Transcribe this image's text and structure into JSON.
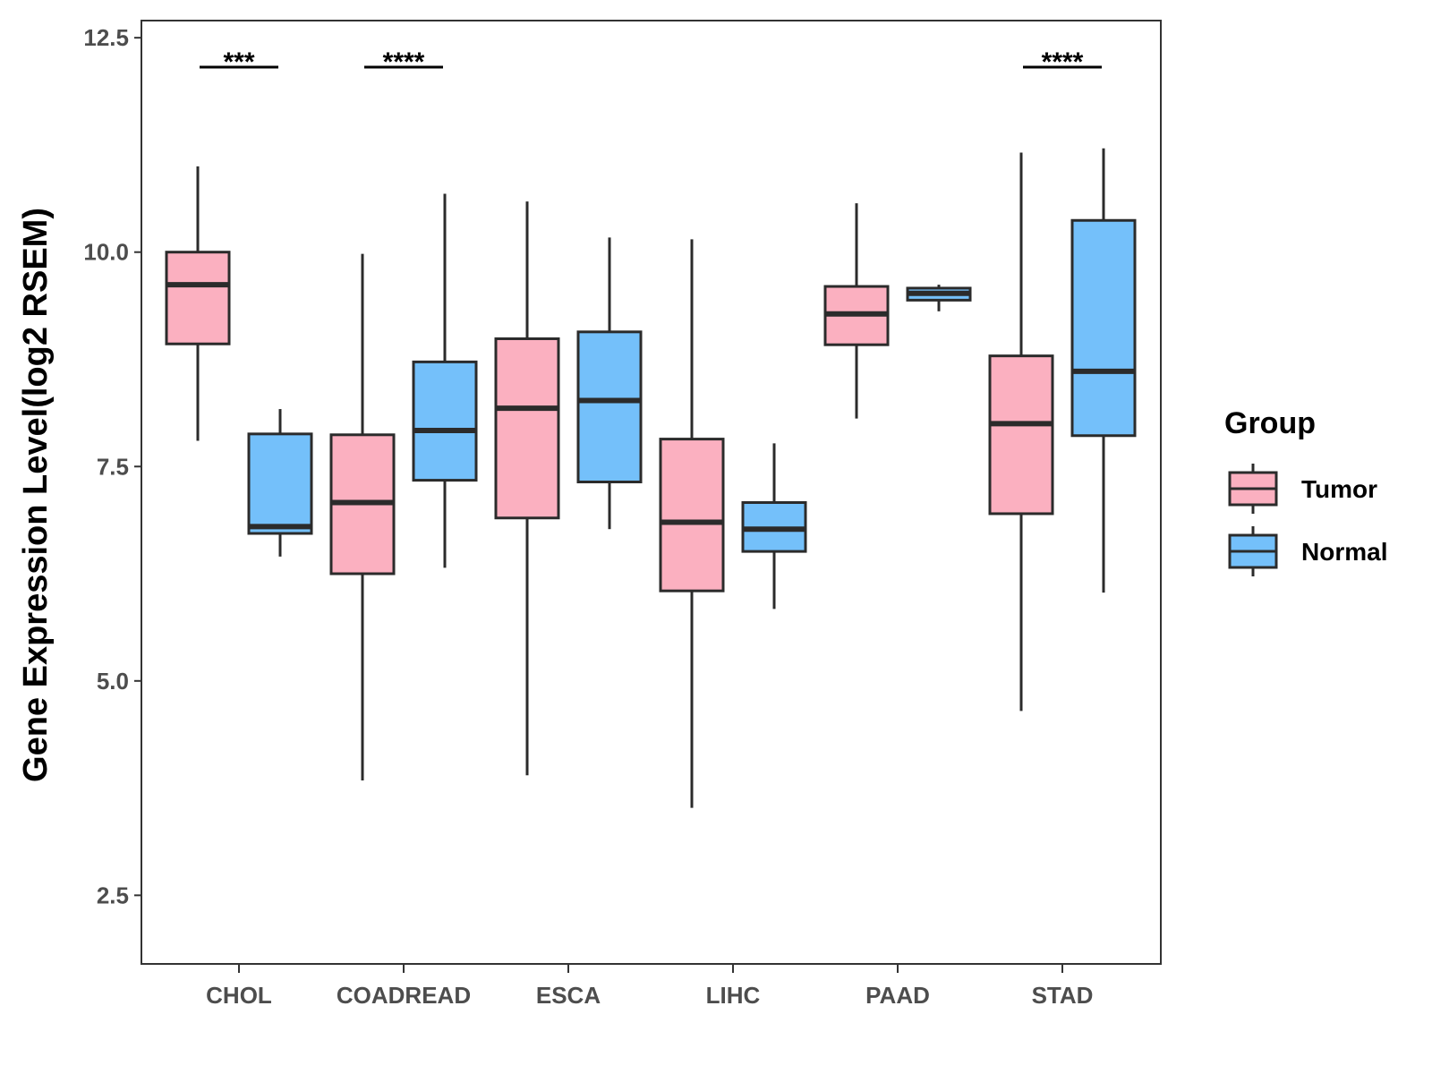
{
  "chart_data": {
    "type": "boxplot",
    "ylabel": "Gene Expression Level(log2 RSEM)",
    "xlabel": "",
    "ylim": [
      1.7,
      12.7
    ],
    "yticks": [
      2.5,
      5.0,
      7.5,
      10.0,
      12.5
    ],
    "ytick_labels": [
      "2.5",
      "5.0",
      "7.5",
      "10.0",
      "12.5"
    ],
    "categories": [
      "CHOL",
      "COADREAD",
      "ESCA",
      "LIHC",
      "PAAD",
      "STAD"
    ],
    "legend": {
      "title": "Group",
      "position": "right",
      "entries": [
        {
          "name": "Tumor",
          "color": "#FBB0C0"
        },
        {
          "name": "Normal",
          "color": "#74C0FA"
        }
      ]
    },
    "series": [
      {
        "name": "Tumor",
        "color": "#FBB0C0",
        "boxes": [
          {
            "min": 7.8,
            "q1": 8.93,
            "median": 9.62,
            "q3": 10.0,
            "max": 11.0
          },
          {
            "min": 3.84,
            "q1": 6.25,
            "median": 7.08,
            "q3": 7.87,
            "max": 9.98
          },
          {
            "min": 3.9,
            "q1": 6.9,
            "median": 8.18,
            "q3": 8.99,
            "max": 10.59
          },
          {
            "min": 3.52,
            "q1": 6.05,
            "median": 6.85,
            "q3": 7.82,
            "max": 10.15
          },
          {
            "min": 8.06,
            "q1": 8.92,
            "median": 9.28,
            "q3": 9.6,
            "max": 10.57
          },
          {
            "min": 4.65,
            "q1": 6.95,
            "median": 8.0,
            "q3": 8.79,
            "max": 11.16
          }
        ]
      },
      {
        "name": "Normal",
        "color": "#74C0FA",
        "boxes": [
          {
            "min": 6.45,
            "q1": 6.72,
            "median": 6.8,
            "q3": 7.88,
            "max": 8.17
          },
          {
            "min": 6.32,
            "q1": 7.34,
            "median": 7.92,
            "q3": 8.72,
            "max": 10.68
          },
          {
            "min": 6.77,
            "q1": 7.32,
            "median": 8.27,
            "q3": 9.07,
            "max": 10.17
          },
          {
            "min": 5.84,
            "q1": 6.51,
            "median": 6.77,
            "q3": 7.08,
            "max": 7.77
          },
          {
            "min": 9.31,
            "q1": 9.44,
            "median": 9.52,
            "q3": 9.58,
            "max": 9.62
          },
          {
            "min": 6.03,
            "q1": 7.86,
            "median": 8.61,
            "q3": 10.37,
            "max": 11.21
          }
        ]
      }
    ],
    "significance": [
      {
        "category": "CHOL",
        "label": "***"
      },
      {
        "category": "COADREAD",
        "label": "****"
      },
      {
        "category": "STAD",
        "label": "****"
      }
    ]
  }
}
